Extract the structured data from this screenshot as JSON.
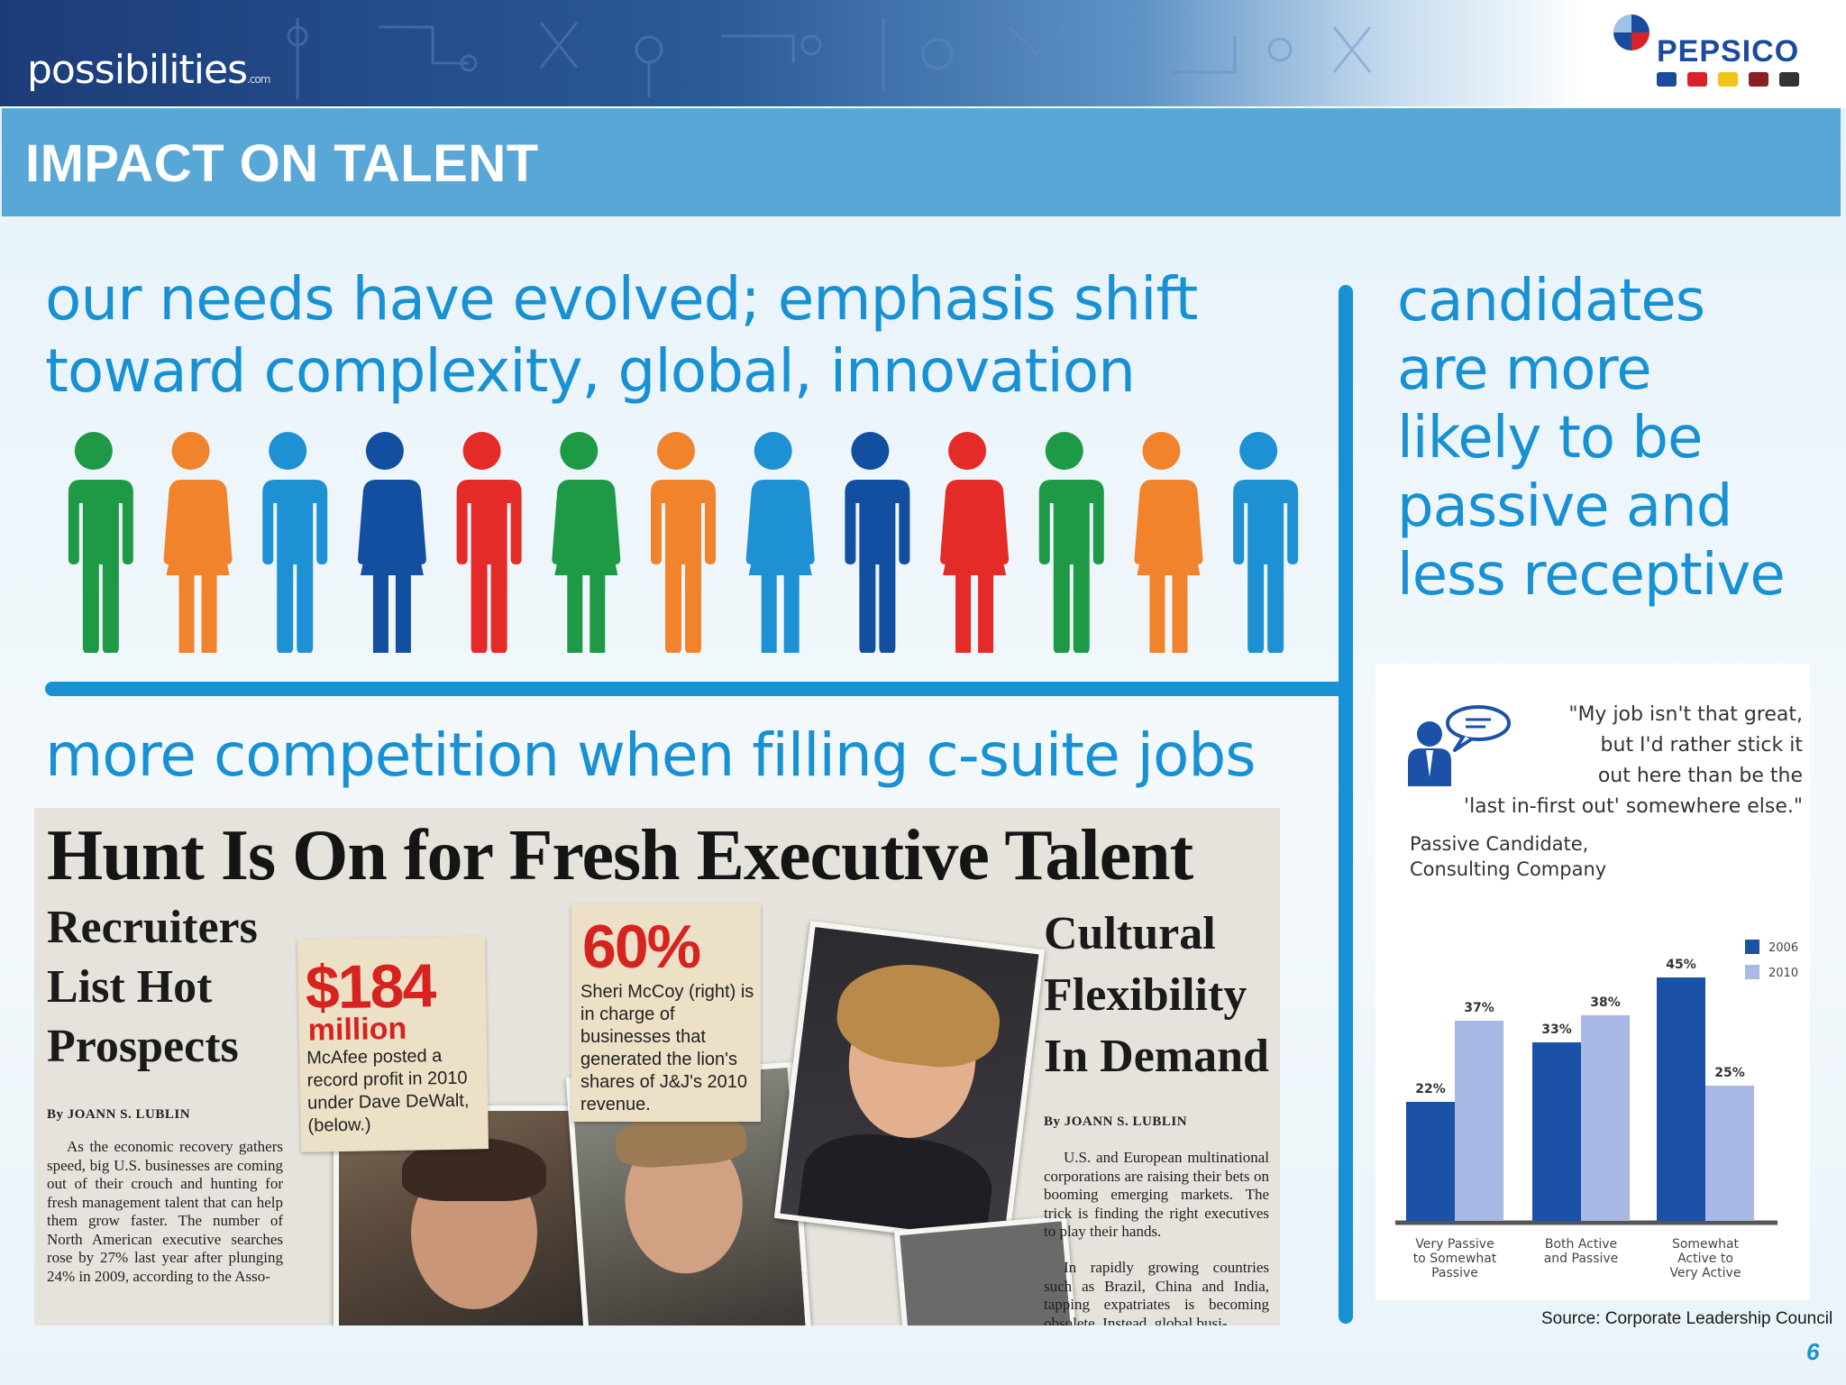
{
  "header": {
    "logo_text": "possibilities",
    "logo_suffix": ".com",
    "brand_name": "PEPSICO"
  },
  "slide": {
    "title": "IMPACT ON TALENT",
    "headline_needs_line1": "our needs have evolved; emphasis shift",
    "headline_needs_line2": "toward complexity, global, innovation",
    "headline_competition": "more competition when filling c-suite jobs",
    "headline_candidates_line1": "candidates",
    "headline_candidates_line2": "are more",
    "headline_candidates_line3": "likely to be",
    "headline_candidates_line4": "passive and",
    "headline_candidates_line5": "less receptive",
    "page_number": "6"
  },
  "people_colors": [
    "#1e9a46",
    "#f1832d",
    "#1e90d4",
    "#124fa0",
    "#e52b27",
    "#1e9a46",
    "#f1832d",
    "#1e90d4",
    "#124fa0",
    "#e52b27",
    "#1e9a46",
    "#f1832d",
    "#1e90d4"
  ],
  "clipping": {
    "title": "Hunt Is On for Fresh Executive Talent",
    "left_sub_line1": "Recruiters",
    "left_sub_line2": "List Hot",
    "left_sub_line3": "Prospects",
    "left_byline": "By JOANN S. LUBLIN",
    "left_body": "As the economic recovery gathers speed, big U.S. businesses are coming out of their crouch and hunting for fresh management talent that can help them grow faster. The number of North American executive searches rose by 27% last year after plunging 24% in 2009, according to the Asso-",
    "note1_big": "$184",
    "note1_mid": "million",
    "note1_text": "McAfee posted a record profit in 2010 under Dave DeWalt, (below.)",
    "note2_big": "60%",
    "note2_text": "Sheri McCoy (right) is in charge of businesses that generated the lion's shares of J&J's 2010 revenue.",
    "right_sub_line1": "Cultural",
    "right_sub_line2": "Flexibility",
    "right_sub_line3": "In Demand",
    "right_byline": "By JOANN S. LUBLIN",
    "right_body_p1": "U.S. and European multinational corporations are raising their bets on booming emerging markets. The trick is finding the right executives to play their hands.",
    "right_body_p2": "In rapidly growing countries such as Brazil, China and India, tapping expatriates is becoming obsolete. Instead, global busi-"
  },
  "quote": {
    "line1": "\"My job isn't that great,",
    "line2": "but I'd rather stick it",
    "line3": "out here than be the",
    "line4": "'last in-first out' somewhere else.\"",
    "attribution_line1": "Passive Candidate,",
    "attribution_line2": "Consulting Company",
    "source": "Source: Corporate Leadership Council"
  },
  "chart_data": {
    "type": "bar",
    "categories": [
      [
        "Very Passive",
        "to Somewhat",
        "Passive"
      ],
      [
        "Both Active",
        "and Passive"
      ],
      [
        "Somewhat",
        "Active to",
        "Very Active"
      ]
    ],
    "series": [
      {
        "name": "2006",
        "color": "#1b52a8",
        "values": [
          22,
          33,
          45
        ]
      },
      {
        "name": "2010",
        "color": "#a9b8e4",
        "values": [
          37,
          38,
          25
        ]
      }
    ],
    "value_suffix": "%",
    "ylim": [
      0,
      50
    ],
    "legend": "top-right",
    "grid": false
  }
}
